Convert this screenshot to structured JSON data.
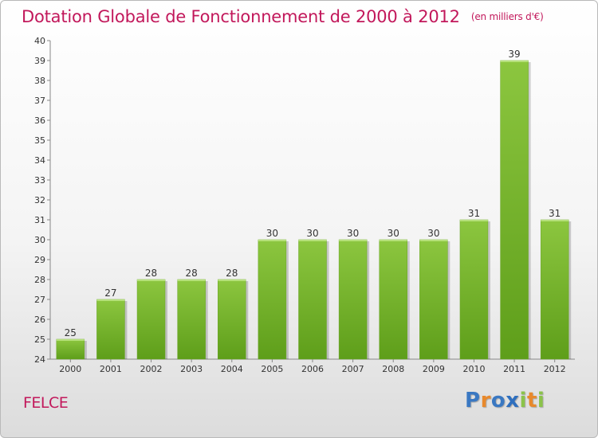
{
  "title": "Dotation Globale de Fonctionnement de 2000 à 2012",
  "subtitle": "(en milliers d'€)",
  "commune": "FELCE",
  "logo": {
    "text": "Proxiti",
    "letters": [
      {
        "char": "P",
        "color": "#3a78c2"
      },
      {
        "char": "r",
        "color": "#e8892c"
      },
      {
        "char": "o",
        "color": "#3a78c2"
      },
      {
        "char": "x",
        "color": "#2f6fbe"
      },
      {
        "char": "i",
        "color": "#8bc34a"
      },
      {
        "char": "t",
        "color": "#e8892c"
      },
      {
        "char": "i",
        "color": "#8bc34a"
      }
    ]
  },
  "chart_data": {
    "type": "bar",
    "categories": [
      "2000",
      "2001",
      "2002",
      "2003",
      "2004",
      "2005",
      "2006",
      "2007",
      "2008",
      "2009",
      "2010",
      "2011",
      "2012"
    ],
    "values": [
      25,
      27,
      28,
      28,
      28,
      30,
      30,
      30,
      30,
      30,
      31,
      39,
      31
    ],
    "data_labels": [
      "25",
      "27",
      "28",
      "28",
      "28",
      "30",
      "30",
      "30",
      "30",
      "30",
      "31",
      "39",
      "31"
    ],
    "ylim": [
      24,
      40
    ],
    "y_ticks": [
      "24",
      "25",
      "26",
      "27",
      "28",
      "29",
      "30",
      "31",
      "32",
      "33",
      "34",
      "35",
      "36",
      "37",
      "38",
      "39",
      "40"
    ],
    "grid": false,
    "legend": "none",
    "bar_color": "#8cc63f",
    "bar_color_dark": "#5e9e1a"
  }
}
